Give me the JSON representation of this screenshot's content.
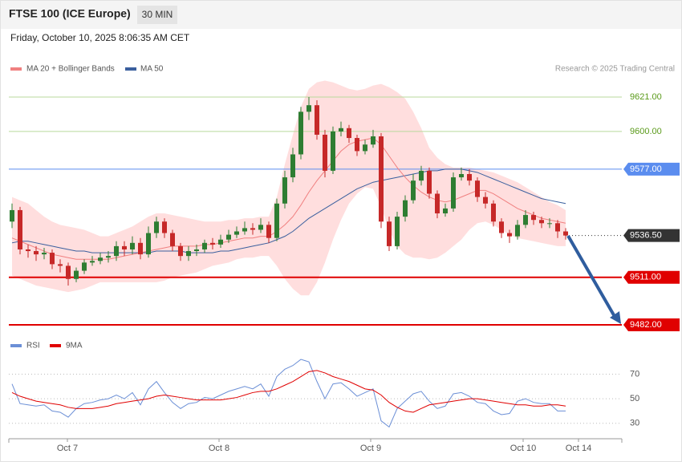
{
  "chart_data": {
    "type": "candlestick",
    "title": "FTSE 100 (ICE Europe)",
    "timeframe": "30 MIN",
    "datetime": "Friday, October 10, 2025 8:06:35 AM CET",
    "credit": "Research © 2025 Trading Central",
    "xlim": [
      -0.4,
      76
    ],
    "xticks": [
      {
        "value": 6.9,
        "label": "Oct 7"
      },
      {
        "value": 25.8,
        "label": "Oct 8"
      },
      {
        "value": 44.7,
        "label": "Oct 9"
      },
      {
        "value": 63.7,
        "label": "Oct 10"
      },
      {
        "value": 70.6,
        "label": "Oct 14"
      }
    ],
    "ylim": [
      9477,
      9634
    ],
    "up_color": "#2e7d32",
    "down_color": "#c62828",
    "open": [
      9545,
      9552,
      9528,
      9527,
      9525,
      9526,
      9519,
      9518,
      9510,
      9515,
      9520,
      9521,
      9523,
      9524,
      9530,
      9528,
      9532,
      9525,
      9538,
      9545,
      9538,
      9530,
      9524,
      9527,
      9528,
      9532,
      9531,
      9534,
      9537,
      9539,
      9541,
      9540,
      9543,
      9535,
      9556,
      9572,
      9586,
      9612,
      9616,
      9598,
      9576,
      9600,
      9602,
      9596,
      9588,
      9592,
      9597,
      9545,
      9530,
      9548,
      9558,
      9570,
      9576,
      9562,
      9550,
      9553,
      9572,
      9574,
      9570,
      9560,
      9556,
      9545,
      9538,
      9536,
      9543,
      9549,
      9546,
      9544,
      9544,
      9539
    ],
    "high": [
      9556,
      9554,
      9531,
      9530,
      9529,
      9528,
      9522,
      9520,
      9517,
      9522,
      9524,
      9526,
      9527,
      9533,
      9533,
      9536,
      9535,
      9542,
      9548,
      9547,
      9540,
      9532,
      9530,
      9531,
      9534,
      9535,
      9537,
      9540,
      9542,
      9545,
      9544,
      9547,
      9545,
      9559,
      9576,
      9590,
      9615,
      9621,
      9619,
      9601,
      9603,
      9606,
      9604,
      9598,
      9595,
      9601,
      9599,
      9548,
      9551,
      9561,
      9574,
      9579,
      9578,
      9564,
      9556,
      9575,
      9578,
      9577,
      9572,
      9563,
      9558,
      9547,
      9540,
      9546,
      9552,
      9551,
      9548,
      9547,
      9546,
      9541
    ],
    "low": [
      9541,
      9525,
      9523,
      9521,
      9522,
      9516,
      9514,
      9506,
      9508,
      9513,
      9518,
      9519,
      9520,
      9521,
      9524,
      9525,
      9522,
      9523,
      9535,
      9535,
      9527,
      9521,
      9521,
      9524,
      9526,
      9528,
      9529,
      9532,
      9535,
      9537,
      9537,
      9538,
      9532,
      9533,
      9553,
      9569,
      9583,
      9607,
      9595,
      9572,
      9574,
      9597,
      9593,
      9585,
      9586,
      9590,
      9541,
      9527,
      9528,
      9545,
      9556,
      9567,
      9559,
      9547,
      9548,
      9551,
      9570,
      9567,
      9557,
      9553,
      9542,
      9535,
      9532,
      9534,
      9541,
      9543,
      9541,
      9541,
      9535,
      9534
    ],
    "close": [
      9552,
      9528,
      9527,
      9525,
      9526,
      9519,
      9518,
      9510,
      9515,
      9520,
      9521,
      9523,
      9524,
      9530,
      9528,
      9532,
      9525,
      9538,
      9545,
      9538,
      9530,
      9524,
      9527,
      9528,
      9532,
      9531,
      9534,
      9537,
      9539,
      9541,
      9540,
      9543,
      9535,
      9556,
      9572,
      9586,
      9612,
      9616,
      9598,
      9576,
      9600,
      9602,
      9596,
      9588,
      9592,
      9597,
      9545,
      9530,
      9548,
      9558,
      9570,
      9576,
      9562,
      9550,
      9553,
      9572,
      9574,
      9570,
      9560,
      9556,
      9545,
      9538,
      9536,
      9543,
      9549,
      9546,
      9544,
      9544,
      9539,
      9536.5
    ],
    "bollinger": {
      "name": "MA 20 + Bollinger Bands",
      "color": "#f08080",
      "band_color": "#ffd6d6",
      "ma": [
        9535,
        9533,
        9531,
        9529,
        9527,
        9525,
        9524,
        9523,
        9522,
        9522,
        9522,
        9522,
        9522,
        9523,
        9524,
        9525,
        9526,
        9527,
        9528,
        9529,
        9530,
        9530,
        9530,
        9530,
        9531,
        9531,
        9532,
        9533,
        9534,
        9535,
        9535,
        9536,
        9536,
        9539,
        9543,
        9548,
        9555,
        9563,
        9570,
        9576,
        9582,
        9588,
        9592,
        9594,
        9595,
        9596,
        9592,
        9585,
        9578,
        9572,
        9567,
        9563,
        9560,
        9558,
        9557,
        9558,
        9560,
        9562,
        9564,
        9564,
        9562,
        9559,
        9556,
        9553,
        9551,
        9549,
        9547,
        9546,
        9545,
        9544
      ],
      "upper": [
        9560,
        9558,
        9556,
        9552,
        9548,
        9545,
        9543,
        9542,
        9541,
        9540,
        9538,
        9536,
        9536,
        9538,
        9540,
        9542,
        9545,
        9548,
        9550,
        9550,
        9549,
        9548,
        9547,
        9546,
        9545,
        9545,
        9545,
        9546,
        9546,
        9547,
        9547,
        9548,
        9548,
        9560,
        9580,
        9598,
        9615,
        9626,
        9630,
        9631,
        9630,
        9628,
        9626,
        9625,
        9626,
        9628,
        9629,
        9627,
        9624,
        9620,
        9612,
        9602,
        9590,
        9584,
        9580,
        9578,
        9578,
        9578,
        9577,
        9576,
        9575,
        9573,
        9571,
        9569,
        9566,
        9563,
        9560,
        9557,
        9555,
        9552
      ],
      "lower": [
        9512,
        9510,
        9508,
        9506,
        9505,
        9504,
        9503,
        9502,
        9503,
        9504,
        9506,
        9508,
        9508,
        9508,
        9508,
        9508,
        9508,
        9508,
        9508,
        9509,
        9511,
        9512,
        9513,
        9514,
        9516,
        9518,
        9519,
        9520,
        9522,
        9523,
        9523,
        9524,
        9524,
        9518,
        9510,
        9504,
        9500,
        9500,
        9508,
        9520,
        9534,
        9546,
        9556,
        9562,
        9566,
        9565,
        9554,
        9540,
        9530,
        9525,
        9523,
        9523,
        9522,
        9523,
        9526,
        9530,
        9534,
        9540,
        9544,
        9545,
        9543,
        9540,
        9537,
        9535,
        9534,
        9533,
        9532,
        9531,
        9530,
        9530
      ]
    },
    "ma50": {
      "name": "MA 50",
      "color": "#3a5f9e",
      "values": [
        9532,
        9533,
        9533,
        9532,
        9531,
        9530,
        9529,
        9528,
        9527,
        9527,
        9526,
        9526,
        9526,
        9526,
        9526,
        9526,
        9526,
        9526,
        9527,
        9527,
        9527,
        9527,
        9526,
        9526,
        9526,
        9526,
        9527,
        9527,
        9528,
        9529,
        9530,
        9531,
        9532,
        9534,
        9536,
        9539,
        9543,
        9547,
        9550,
        9553,
        9556,
        9559,
        9562,
        9565,
        9567,
        9569,
        9570,
        9571,
        9572,
        9573,
        9574,
        9575,
        9576,
        9576,
        9577,
        9577,
        9577,
        9576,
        9575,
        9573,
        9571,
        9569,
        9567,
        9565,
        9563,
        9561,
        9559,
        9558,
        9557,
        9556
      ]
    },
    "levels": [
      {
        "value": 9621,
        "label": "9621.00",
        "color": "#b8d99c",
        "text_color": "#5a9a1a",
        "style": "plain"
      },
      {
        "value": 9600,
        "label": "9600.00",
        "color": "#b8d99c",
        "text_color": "#5a9a1a",
        "style": "plain"
      },
      {
        "value": 9577,
        "label": "9577.00",
        "color": "#5b8def",
        "text_color": "#ffffff",
        "style": "boxed"
      },
      {
        "value": 9536.5,
        "label": "9536.50",
        "color": "#333333",
        "text_color": "#ffffff",
        "style": "dotted"
      },
      {
        "value": 9511,
        "label": "9511.00",
        "color": "#e00000",
        "text_color": "#ffffff",
        "style": "boxed"
      },
      {
        "value": 9482,
        "label": "9482.00",
        "color": "#e00000",
        "text_color": "#ffffff",
        "style": "boxed"
      }
    ],
    "rsi": {
      "ylim": [
        22,
        84
      ],
      "yticks": [
        70,
        50,
        30
      ],
      "series": [
        {
          "name": "RSI",
          "color": "#6b8fd6",
          "values": [
            62,
            46,
            45,
            44,
            45,
            40,
            39,
            35,
            42,
            46,
            47,
            49,
            50,
            53,
            50,
            55,
            45,
            58,
            64,
            55,
            47,
            42,
            46,
            47,
            51,
            50,
            53,
            56,
            58,
            60,
            58,
            62,
            52,
            68,
            74,
            77,
            82,
            80,
            64,
            50,
            62,
            63,
            58,
            52,
            55,
            58,
            32,
            27,
            42,
            48,
            54,
            56,
            48,
            42,
            44,
            54,
            55,
            52,
            47,
            46,
            40,
            37,
            38,
            48,
            50,
            47,
            46,
            46,
            40,
            40
          ]
        },
        {
          "name": "9MA",
          "color": "#e00000",
          "values": [
            55,
            52,
            50,
            48,
            47,
            46,
            45,
            43,
            42,
            42,
            42,
            43,
            44,
            46,
            47,
            48,
            49,
            50,
            52,
            53,
            52,
            51,
            50,
            49,
            49,
            49,
            49,
            50,
            51,
            53,
            55,
            56,
            56,
            58,
            61,
            64,
            68,
            72,
            73,
            71,
            68,
            66,
            64,
            61,
            58,
            57,
            53,
            47,
            43,
            40,
            39,
            42,
            45,
            46,
            47,
            48,
            49,
            50,
            50,
            49,
            48,
            47,
            46,
            45,
            45,
            44,
            44,
            45,
            45,
            44
          ]
        }
      ]
    }
  }
}
